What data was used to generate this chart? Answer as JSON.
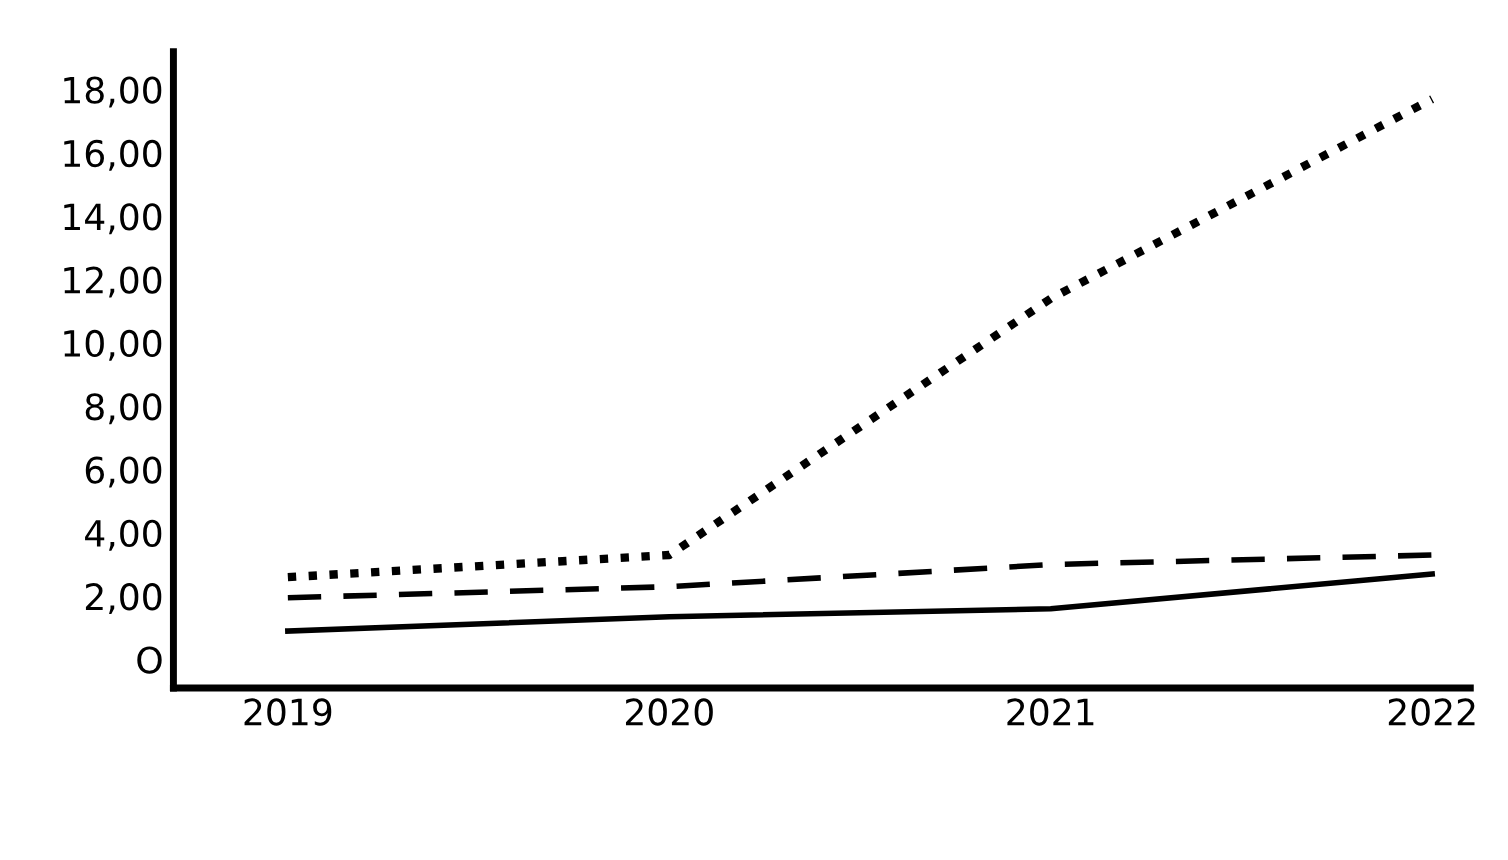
{
  "chart_data": {
    "type": "line",
    "categories": [
      "2019",
      "2020",
      "2021",
      "2022"
    ],
    "series": [
      {
        "color": "#000000",
        "line_style": "dotted",
        "values": [
          2.6,
          3.3,
          11.4,
          17.7
        ]
      },
      {
        "color": "#000000",
        "line_style": "solid",
        "values": [
          0.9,
          1.35,
          1.6,
          2.7
        ]
      },
      {
        "color": "#000000",
        "line_style": "dashed",
        "values": [
          1.95,
          2.3,
          3.0,
          3.3
        ]
      }
    ],
    "ylim": [
      -0.9,
      19.2
    ],
    "yticks": [
      {
        "value": 0,
        "label": "O"
      },
      {
        "value": 2,
        "label": "2,00"
      },
      {
        "value": 4,
        "label": "4,00"
      },
      {
        "value": 6,
        "label": "6,00"
      },
      {
        "value": 8,
        "label": "8,00"
      },
      {
        "value": 10,
        "label": "10,00"
      },
      {
        "value": 12,
        "label": "12,00"
      },
      {
        "value": 14,
        "label": "14,00"
      },
      {
        "value": 16,
        "label": "16,00"
      },
      {
        "value": 18,
        "label": "18,00"
      }
    ],
    "grid": false
  }
}
